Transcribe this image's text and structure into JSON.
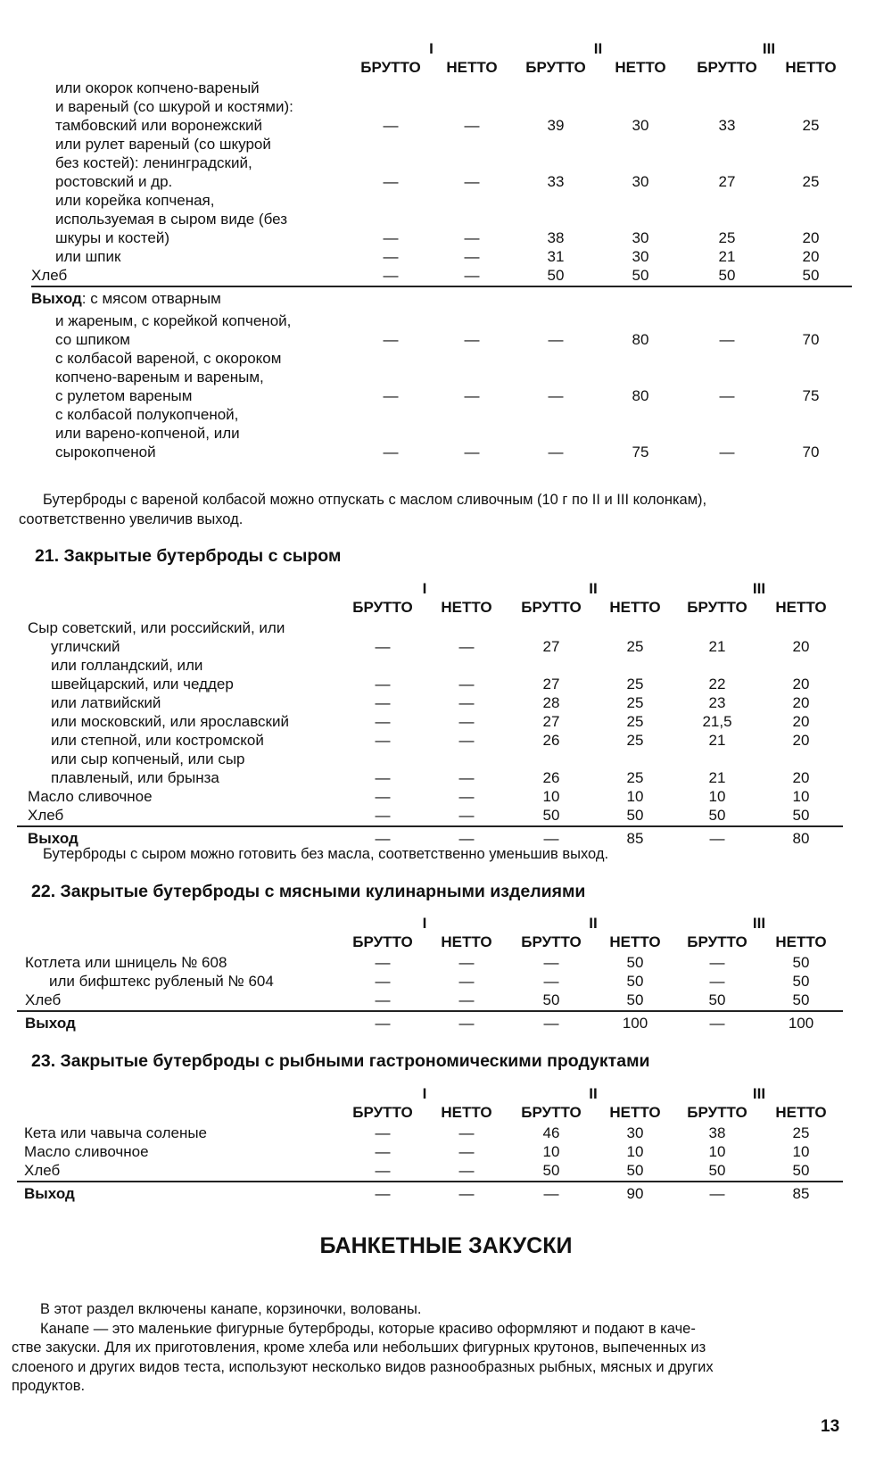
{
  "columns": {
    "groups": [
      "I",
      "II",
      "III"
    ],
    "sub": [
      "БРУТТО",
      "НЕТТО",
      "БРУТТО",
      "НЕТТО",
      "БРУТТО",
      "НЕТТО"
    ]
  },
  "table_cont": {
    "rows": [
      {
        "lines": [
          "или окорок копчено-вареный",
          "и вареный (со шкурой и костями):",
          "тамбовский или воронежский"
        ],
        "indent": true,
        "values": [
          "—",
          "—",
          "39",
          "30",
          "33",
          "25"
        ]
      },
      {
        "lines": [
          "или рулет вареный (со шкурой",
          "без костей): ленинградский,",
          "ростовский и др."
        ],
        "indent": true,
        "values": [
          "—",
          "—",
          "33",
          "30",
          "27",
          "25"
        ]
      },
      {
        "lines": [
          "или корейка копченая,",
          "используемая в сыром виде (без",
          "шкуры и костей)"
        ],
        "indent": true,
        "values": [
          "—",
          "—",
          "38",
          "30",
          "25",
          "20"
        ]
      },
      {
        "lines": [
          "или шпик"
        ],
        "indent": true,
        "values": [
          "—",
          "—",
          "31",
          "30",
          "21",
          "20"
        ]
      },
      {
        "lines": [
          "Хлеб"
        ],
        "indent": false,
        "values": [
          "—",
          "—",
          "50",
          "50",
          "50",
          "50"
        ]
      }
    ],
    "yield_label": "Выход",
    "yield_text": ": с мясом отварным",
    "yield_rows": [
      {
        "lines": [
          "и жареным, с корейкой копченой,",
          "со шпиком"
        ],
        "indent": true,
        "values": [
          "—",
          "—",
          "—",
          "80",
          "—",
          "70"
        ]
      },
      {
        "lines": [
          "с колбасой вареной, с окороком",
          "копчено-вареным и вареным,",
          "с рулетом вареным"
        ],
        "indent": true,
        "values": [
          "—",
          "—",
          "—",
          "80",
          "—",
          "75"
        ]
      },
      {
        "lines": [
          "с колбасой полукопченой,",
          "или варено-копченой, или",
          "сырокопченой"
        ],
        "indent": true,
        "values": [
          "—",
          "—",
          "—",
          "75",
          "—",
          "70"
        ]
      }
    ]
  },
  "note1": [
    "Бутерброды с вареной колбасой можно отпускать с маслом сливочным (10 г по II и III колонкам),",
    "соответственно увеличив выход."
  ],
  "table21": {
    "title": "21. Закрытые бутерброды с сыром",
    "rows": [
      {
        "lines": [
          "Сыр советский, или российский, или",
          "угличский"
        ],
        "indent": false,
        "sub": true,
        "values": [
          "—",
          "—",
          "27",
          "25",
          "21",
          "20"
        ]
      },
      {
        "lines": [
          "или голландский, или",
          "швейцарский, или чеддер"
        ],
        "indent": true,
        "values": [
          "—",
          "—",
          "27",
          "25",
          "22",
          "20"
        ]
      },
      {
        "lines": [
          "или латвийский"
        ],
        "indent": true,
        "values": [
          "—",
          "—",
          "28",
          "25",
          "23",
          "20"
        ]
      },
      {
        "lines": [
          "или московский, или ярославский"
        ],
        "indent": true,
        "values": [
          "—",
          "—",
          "27",
          "25",
          "21,5",
          "20"
        ]
      },
      {
        "lines": [
          "или степной, или костромской"
        ],
        "indent": true,
        "values": [
          "—",
          "—",
          "26",
          "25",
          "21",
          "20"
        ]
      },
      {
        "lines": [
          "или сыр копченый, или сыр",
          "плавленый, или брынза"
        ],
        "indent": true,
        "values": [
          "—",
          "—",
          "26",
          "25",
          "21",
          "20"
        ]
      },
      {
        "lines": [
          "Масло сливочное"
        ],
        "indent": false,
        "values": [
          "—",
          "—",
          "10",
          "10",
          "10",
          "10"
        ]
      },
      {
        "lines": [
          "Хлеб"
        ],
        "indent": false,
        "values": [
          "—",
          "—",
          "50",
          "50",
          "50",
          "50"
        ]
      }
    ],
    "yield_label": "Выход",
    "yield_values": [
      "—",
      "—",
      "—",
      "85",
      "—",
      "80"
    ]
  },
  "note21": "Бутерброды с сыром можно готовить без масла, соответственно уменьшив выход.",
  "table22": {
    "title": "22. Закрытые бутерброды с мясными кулинарными изделиями",
    "rows": [
      {
        "lines": [
          "Котлета или шницель № 608"
        ],
        "indent": false,
        "values": [
          "—",
          "—",
          "—",
          "50",
          "—",
          "50"
        ]
      },
      {
        "lines": [
          "или бифштекс рубленый № 604"
        ],
        "indent": true,
        "values": [
          "—",
          "—",
          "—",
          "50",
          "—",
          "50"
        ]
      },
      {
        "lines": [
          "Хлеб"
        ],
        "indent": false,
        "values": [
          "—",
          "—",
          "50",
          "50",
          "50",
          "50"
        ]
      }
    ],
    "yield_label": "Выход",
    "yield_values": [
      "—",
      "—",
      "—",
      "100",
      "—",
      "100"
    ]
  },
  "table23": {
    "title": "23. Закрытые бутерброды с рыбными гастрономическими продуктами",
    "rows": [
      {
        "lines": [
          "Кета или чавыча соленые"
        ],
        "indent": false,
        "values": [
          "—",
          "—",
          "46",
          "30",
          "38",
          "25"
        ]
      },
      {
        "lines": [
          "Масло сливочное"
        ],
        "indent": false,
        "values": [
          "—",
          "—",
          "10",
          "10",
          "10",
          "10"
        ]
      },
      {
        "lines": [
          "Хлеб"
        ],
        "indent": false,
        "values": [
          "—",
          "—",
          "50",
          "50",
          "50",
          "50"
        ]
      }
    ],
    "yield_label": "Выход",
    "yield_values": [
      "—",
      "—",
      "—",
      "90",
      "—",
      "85"
    ]
  },
  "section_title": "БАНКЕТНЫЕ ЗАКУСКИ",
  "section_text": [
    "В этот раздел включены канапе, корзиночки, волованы.",
    "Канапе — это маленькие фигурные бутерброды, которые красиво оформляют и подают в каче-",
    "стве закуски. Для их приготовления, кроме хлеба или небольших фигурных крутонов, выпеченных из",
    "слоеного и других видов теста, используют несколько видов разнообразных рыбных, мясных и других",
    "продуктов."
  ],
  "page_number": "13"
}
